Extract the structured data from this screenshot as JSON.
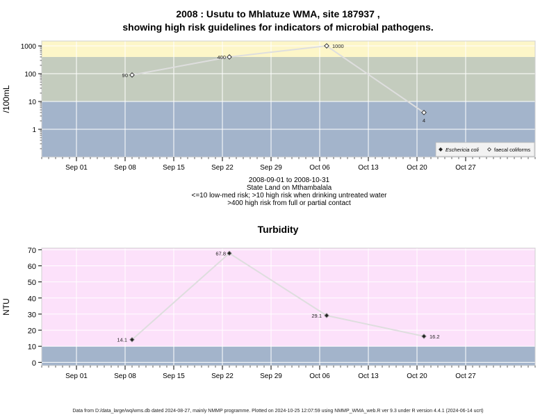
{
  "header": {
    "title_line1": "2008 : Usutu to Mhlatuze WMA, site 187937 ,",
    "title_line2": "showing high risk guidelines for indicators of microbial pathogens."
  },
  "caption": {
    "date_range": "2008-09-01 to 2008-10-31",
    "site_name": "State Land on Mthambalala",
    "guideline_1": "<=10 low-med risk; >10 high risk when drinking untreated water",
    "guideline_2": ">400 high risk from full or partial contact"
  },
  "footer": {
    "text": "Data from D:/data_large/wq/wms.db dated 2024-08-27, mainly NMMP programme. Plotted on 2024-10-25 12:07:59 using NMMP_WMA_web.R ver 9.3 under R version 4.4.1 (2024-06-14 ucrt)"
  },
  "colors": {
    "band_low": "#a3b4cb",
    "band_mid": "#c4ccbe",
    "band_high": "#fdf6c8",
    "turbidity_band_high": "#fce1fa",
    "turbidity_band_low": "#a3b4cb",
    "grid": "#ffffff",
    "line": "#dedede"
  },
  "chart_data": [
    {
      "type": "line",
      "title": "",
      "ylabel": "/100mL",
      "yscale": "log",
      "ylim": [
        0.1,
        1500
      ],
      "yticks": [
        "1",
        "10",
        "100",
        "1000"
      ],
      "xlim": [
        "2008-08-27",
        "2008-11-06"
      ],
      "xticks": [
        "Sep 01",
        "Sep 08",
        "Sep 15",
        "Sep 22",
        "Sep 29",
        "Oct 06",
        "Oct 13",
        "Oct 20",
        "Oct 27"
      ],
      "xtick_dates": [
        "2008-09-01",
        "2008-09-08",
        "2008-09-15",
        "2008-09-22",
        "2008-09-29",
        "2008-10-06",
        "2008-10-13",
        "2008-10-20",
        "2008-10-27"
      ],
      "bands": [
        {
          "from": 0.1,
          "to": 10
        },
        {
          "from": 10,
          "to": 400
        },
        {
          "from": 400,
          "to": 1500
        }
      ],
      "legend": {
        "placement": "bottom-right",
        "entries": [
          "Eschericia coli",
          "faecal coliforms"
        ]
      },
      "series": [
        {
          "name": "faecal coliforms",
          "marker": "open-diamond",
          "x": [
            "2008-09-09",
            "2008-09-23",
            "2008-10-07",
            "2008-10-21"
          ],
          "values": [
            90,
            400,
            1000,
            4
          ],
          "labels": [
            "90",
            "400",
            "1000",
            "4"
          ]
        }
      ]
    },
    {
      "type": "line",
      "title": "Turbidity",
      "ylabel": "NTU",
      "ylim": [
        -2,
        71
      ],
      "yticks": [
        "0",
        "10",
        "20",
        "30",
        "40",
        "50",
        "60",
        "70"
      ],
      "xlim": [
        "2008-08-27",
        "2008-11-06"
      ],
      "xticks": [
        "Sep 01",
        "Sep 08",
        "Sep 15",
        "Sep 22",
        "Sep 29",
        "Oct 06",
        "Oct 13",
        "Oct 20",
        "Oct 27"
      ],
      "xtick_dates": [
        "2008-09-01",
        "2008-09-08",
        "2008-09-15",
        "2008-09-22",
        "2008-09-29",
        "2008-10-06",
        "2008-10-13",
        "2008-10-20",
        "2008-10-27"
      ],
      "bands": [
        {
          "from": -2,
          "to": 10
        },
        {
          "from": 10,
          "to": 71
        }
      ],
      "series": [
        {
          "marker": "filled-diamond",
          "x": [
            "2008-09-09",
            "2008-09-23",
            "2008-10-07",
            "2008-10-21"
          ],
          "values": [
            14.1,
            67.8,
            29.1,
            16.2
          ],
          "labels": [
            "14.1",
            "67.8",
            "29.1",
            "16.2"
          ]
        }
      ]
    }
  ]
}
